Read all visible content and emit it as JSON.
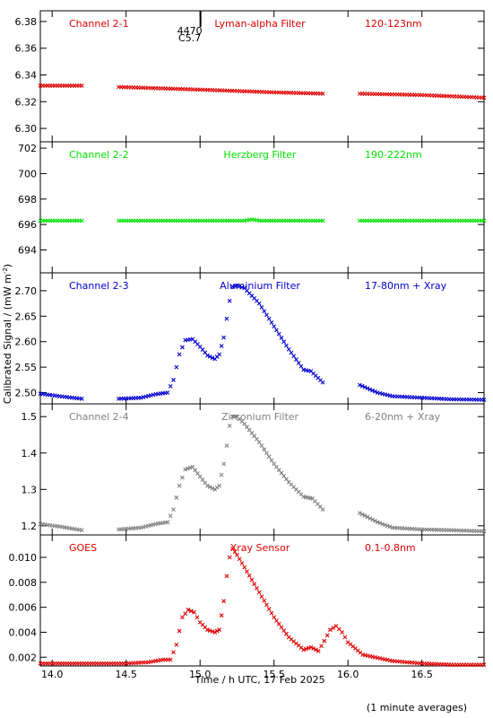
{
  "chart_data": {
    "type": "scatter",
    "xlabel": "Time / h UTC, 17 Feb 2025",
    "ylabel": "Calibrated Signal / (mW m",
    "ylabel_sup": "-2",
    "ylabel_close": ")",
    "footnote": "(1 minute averages)",
    "xlim": [
      13.92,
      16.92
    ],
    "xticks": [
      "14.0",
      "14.5",
      "15.0",
      "15.5",
      "16.0",
      "16.5"
    ],
    "xtick_values": [
      14.0,
      14.5,
      15.0,
      15.5,
      16.0,
      16.5
    ],
    "marker_annotation": {
      "x": 14.93,
      "lines": [
        "4470",
        "C5.7"
      ]
    },
    "panels": [
      {
        "channel": "Channel 2-1",
        "filter": "Lyman-alpha Filter",
        "band": "120-123nm",
        "color": "#e00000",
        "ylim": [
          6.29,
          6.388
        ],
        "yticks": [
          "6.30",
          "6.32",
          "6.34",
          "6.36",
          "6.38"
        ],
        "ytick_values": [
          6.3,
          6.32,
          6.34,
          6.36,
          6.38
        ],
        "series": [
          {
            "x": [
              13.92,
              14.2
            ],
            "y": [
              6.332,
              6.332
            ]
          },
          {
            "x": [
              14.45,
              15.0,
              15.5,
              15.83
            ],
            "y": [
              6.331,
              6.329,
              6.327,
              6.326
            ]
          },
          {
            "x": [
              16.08,
              16.5,
              16.92
            ],
            "y": [
              6.326,
              6.325,
              6.323
            ]
          }
        ]
      },
      {
        "channel": "Channel 2-2",
        "filter": "Herzberg Filter",
        "band": "190-222nm",
        "color": "#00e000",
        "ylim": [
          692.2,
          702.5
        ],
        "yticks": [
          "694",
          "696",
          "698",
          "700",
          "702"
        ],
        "ytick_values": [
          694,
          696,
          698,
          700,
          702
        ],
        "series": [
          {
            "x": [
              13.92,
              14.2
            ],
            "y": [
              696.3,
              696.3
            ]
          },
          {
            "x": [
              14.45,
              15.3,
              15.35,
              15.4,
              15.83
            ],
            "y": [
              696.3,
              696.3,
              696.4,
              696.3,
              696.3
            ]
          },
          {
            "x": [
              16.08,
              16.92
            ],
            "y": [
              696.3,
              696.3
            ]
          }
        ]
      },
      {
        "channel": "Channel 2-3",
        "filter": "Aluminium Filter",
        "band": "17-80nm + Xray",
        "color": "#0000d0",
        "ylim": [
          2.478,
          2.735
        ],
        "yticks": [
          "2.50",
          "2.55",
          "2.60",
          "2.65",
          "2.70"
        ],
        "ytick_values": [
          2.5,
          2.55,
          2.6,
          2.65,
          2.7
        ],
        "series": [
          {
            "x": [
              13.92,
              14.05,
              14.2
            ],
            "y": [
              2.498,
              2.493,
              2.488
            ]
          },
          {
            "x": [
              14.45,
              14.6,
              14.7,
              14.78,
              14.82,
              14.86,
              14.9,
              14.95,
              15.0,
              15.05,
              15.1,
              15.13,
              15.16,
              15.18,
              15.2,
              15.22,
              15.25,
              15.3,
              15.4,
              15.5,
              15.6,
              15.7,
              15.75,
              15.83
            ],
            "y": [
              2.488,
              2.49,
              2.497,
              2.5,
              2.525,
              2.575,
              2.603,
              2.605,
              2.59,
              2.573,
              2.566,
              2.575,
              2.608,
              2.645,
              2.68,
              2.708,
              2.71,
              2.705,
              2.675,
              2.63,
              2.585,
              2.545,
              2.542,
              2.52
            ]
          },
          {
            "x": [
              16.08,
              16.2,
              16.3,
              16.5,
              16.7,
              16.92
            ],
            "y": [
              2.515,
              2.5,
              2.493,
              2.49,
              2.487,
              2.486
            ]
          }
        ]
      },
      {
        "channel": "Channel 2-4",
        "filter": "Zirconium Filter",
        "band": "6-20nm + Xray",
        "color": "#808080",
        "ylim": [
          1.175,
          1.535
        ],
        "yticks": [
          "1.2",
          "1.3",
          "1.4",
          "1.5"
        ],
        "ytick_values": [
          1.2,
          1.3,
          1.4,
          1.5
        ],
        "series": [
          {
            "x": [
              13.92,
              14.05,
              14.2
            ],
            "y": [
              1.205,
              1.198,
              1.188
            ]
          },
          {
            "x": [
              14.45,
              14.6,
              14.7,
              14.78,
              14.82,
              14.86,
              14.9,
              14.95,
              15.0,
              15.05,
              15.1,
              15.13,
              15.16,
              15.18,
              15.2,
              15.22,
              15.25,
              15.3,
              15.4,
              15.5,
              15.6,
              15.7,
              15.76,
              15.83
            ],
            "y": [
              1.19,
              1.195,
              1.205,
              1.21,
              1.245,
              1.31,
              1.355,
              1.362,
              1.335,
              1.31,
              1.3,
              1.31,
              1.37,
              1.42,
              1.475,
              1.5,
              1.5,
              1.48,
              1.43,
              1.37,
              1.32,
              1.28,
              1.275,
              1.245
            ]
          },
          {
            "x": [
              16.08,
              16.2,
              16.3,
              16.5,
              16.7,
              16.92
            ],
            "y": [
              1.235,
              1.21,
              1.195,
              1.19,
              1.188,
              1.185
            ]
          }
        ]
      },
      {
        "channel": "GOES",
        "filter": "Xray Sensor",
        "band": "0.1-0.8nm",
        "color": "#e00000",
        "ylim": [
          0.0013,
          0.0118
        ],
        "yticks": [
          "0.002",
          "0.004",
          "0.006",
          "0.008",
          "0.010"
        ],
        "ytick_values": [
          0.002,
          0.004,
          0.006,
          0.008,
          0.01
        ],
        "series": [
          {
            "x": [
              13.92,
              14.2,
              14.5,
              14.65,
              14.75,
              14.8,
              14.84,
              14.88,
              14.92,
              14.96,
              15.0,
              15.05,
              15.1,
              15.13,
              15.16,
              15.18,
              15.2,
              15.22,
              15.25,
              15.3,
              15.4,
              15.5,
              15.6,
              15.7,
              15.75,
              15.8,
              15.84,
              15.88,
              15.92,
              15.96,
              16.0,
              16.1,
              16.3,
              16.5,
              16.7,
              16.92
            ],
            "y": [
              0.0015,
              0.0015,
              0.0015,
              0.0016,
              0.0018,
              0.0018,
              0.003,
              0.0052,
              0.0058,
              0.0056,
              0.0048,
              0.0042,
              0.004,
              0.0042,
              0.0065,
              0.0085,
              0.01,
              0.0107,
              0.0102,
              0.0092,
              0.0072,
              0.0052,
              0.0036,
              0.0026,
              0.0028,
              0.0025,
              0.0033,
              0.0042,
              0.0045,
              0.004,
              0.0032,
              0.0022,
              0.0017,
              0.0015,
              0.0014,
              0.0014
            ]
          }
        ]
      }
    ]
  }
}
